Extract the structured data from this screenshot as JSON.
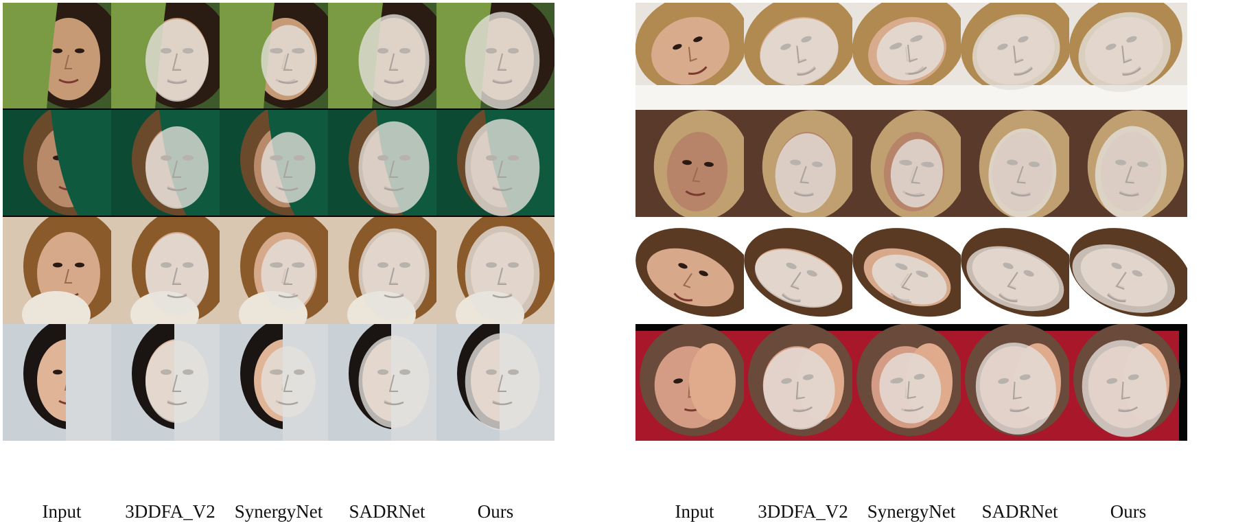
{
  "figure": {
    "panels": [
      {
        "id": "left",
        "columns": [
          "Input",
          "3DDFA_V2",
          "SynergyNet",
          "SADRNet",
          "Ours"
        ],
        "rows": [
          {
            "bg": "#3f5a2a",
            "skin": "#c79a76",
            "hair": "#2a1c12",
            "pose": "frontal-occluded-leaf"
          },
          {
            "bg": "#0d4a34",
            "skin": "#b88a6a",
            "hair": "#6a4a2a",
            "pose": "frontal-occluded-plant"
          },
          {
            "bg": "#d9c7b2",
            "skin": "#d6a98a",
            "hair": "#8a5a2a",
            "pose": "frontal-occluded-cup"
          },
          {
            "bg": "#c9d0d6",
            "skin": "#e0b497",
            "hair": "#1a1412",
            "pose": "frontal-occluded-door"
          }
        ]
      },
      {
        "id": "right",
        "columns": [
          "Input",
          "3DDFA_V2",
          "SynergyNet",
          "SADRNet",
          "Ours"
        ],
        "rows": [
          {
            "bg": "#e9e4de",
            "skin": "#d8ab8c",
            "hair": "#b08a50",
            "pose": "rotated-lying"
          },
          {
            "bg": "#5a3a2a",
            "skin": "#b7846a",
            "hair": "#c0a070",
            "pose": "profile-right"
          },
          {
            "bg": "#ffffff",
            "skin": "#d7a88a",
            "hair": "#5a3a22",
            "pose": "profile-up"
          },
          {
            "bg": "#a8182a",
            "skin": "#d49c84",
            "hair": "#6a4a3a",
            "pose": "frontal-occluded-hand"
          }
        ]
      }
    ],
    "colors": {
      "mesh": "#e6e2de",
      "mesh_opacity": 0.78,
      "label_text": "#111111"
    }
  }
}
